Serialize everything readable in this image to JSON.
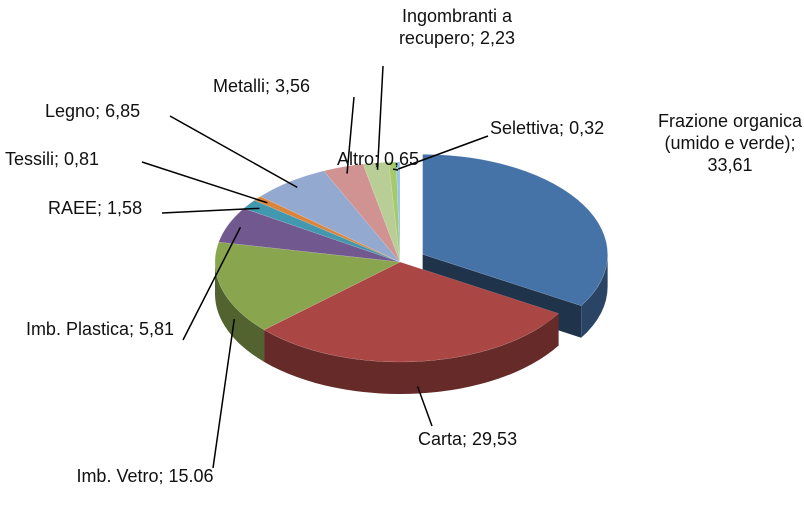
{
  "chart_data": {
    "type": "pie3d",
    "categories": [
      "Frazione organica (umido e verde)",
      "Carta",
      "Imb. Vetro",
      "Imb. Plastica",
      "RAEE",
      "Tessili",
      "Legno",
      "Metalli",
      "Ingombranti a recupero",
      "Altro",
      "Selettiva"
    ],
    "values": [
      33.61,
      29.53,
      15.06,
      5.81,
      1.58,
      0.81,
      6.85,
      3.56,
      2.23,
      0.65,
      0.32
    ],
    "value_labels": [
      "33,61",
      "29,53",
      "15.06",
      "5,81",
      "1,58",
      "0,81",
      "6,85",
      "3,56",
      "2,23",
      "0,65",
      "0,32"
    ],
    "label_separator": "; ",
    "colors": [
      "#4572a7",
      "#aa4643",
      "#89a54e",
      "#71588f",
      "#4198af",
      "#db843d",
      "#93a9cf",
      "#d19392",
      "#b9cd96",
      "#a6c96a",
      "#92c5e8"
    ],
    "exploded": [
      0
    ]
  }
}
